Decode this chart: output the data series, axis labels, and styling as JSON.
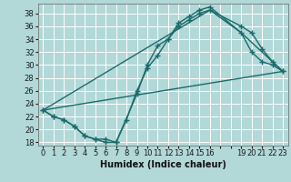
{
  "xlabel": "Humidex (Indice chaleur)",
  "background_color": "#b2d8d8",
  "grid_color": "#ffffff",
  "line_color": "#1a6b6b",
  "xlim": [
    -0.5,
    23.5
  ],
  "ylim": [
    17.5,
    39.5
  ],
  "yticks": [
    18,
    20,
    22,
    24,
    26,
    28,
    30,
    32,
    34,
    36,
    38
  ],
  "xticks": [
    0,
    1,
    2,
    3,
    4,
    5,
    6,
    7,
    8,
    9,
    10,
    11,
    12,
    13,
    14,
    15,
    16,
    17,
    18,
    19,
    20,
    21,
    22,
    23
  ],
  "xtick_labels": [
    "0",
    "1",
    "2",
    "3",
    "4",
    "5",
    "6",
    "7",
    "8",
    "9",
    "10",
    "11",
    "12",
    "13",
    "14",
    "15",
    "16",
    "",
    "",
    "19",
    "20",
    "21",
    "22",
    "23"
  ],
  "series": [
    {
      "x": [
        0,
        1,
        2,
        3,
        4,
        5,
        6,
        7,
        9,
        10,
        11,
        12,
        13,
        14,
        15,
        16,
        19,
        20,
        21,
        22,
        23
      ],
      "y": [
        23,
        22,
        21.5,
        20.5,
        19,
        18.5,
        18,
        18,
        25.5,
        30,
        33,
        34,
        36.5,
        37.5,
        38.5,
        39,
        35,
        32,
        30.5,
        30,
        29
      ],
      "marker": "+",
      "markersize": 4,
      "linewidth": 1.0
    },
    {
      "x": [
        0,
        1,
        2,
        3,
        4,
        5,
        6,
        7,
        8,
        9,
        10,
        11,
        12,
        13,
        14,
        15,
        16,
        19,
        20,
        21,
        22,
        23
      ],
      "y": [
        23,
        22,
        21.5,
        20.5,
        19,
        18.5,
        18.5,
        18,
        21.5,
        26,
        29.5,
        31.5,
        34,
        36,
        37,
        38,
        38.5,
        36,
        35,
        32.5,
        30.5,
        29
      ],
      "marker": "+",
      "markersize": 4,
      "linewidth": 1.0
    },
    {
      "x": [
        0,
        16,
        19,
        23
      ],
      "y": [
        23,
        38.5,
        35,
        29
      ],
      "marker": null,
      "markersize": 0,
      "linewidth": 1.0
    },
    {
      "x": [
        0,
        23
      ],
      "y": [
        23,
        29
      ],
      "marker": null,
      "markersize": 0,
      "linewidth": 1.0
    }
  ]
}
